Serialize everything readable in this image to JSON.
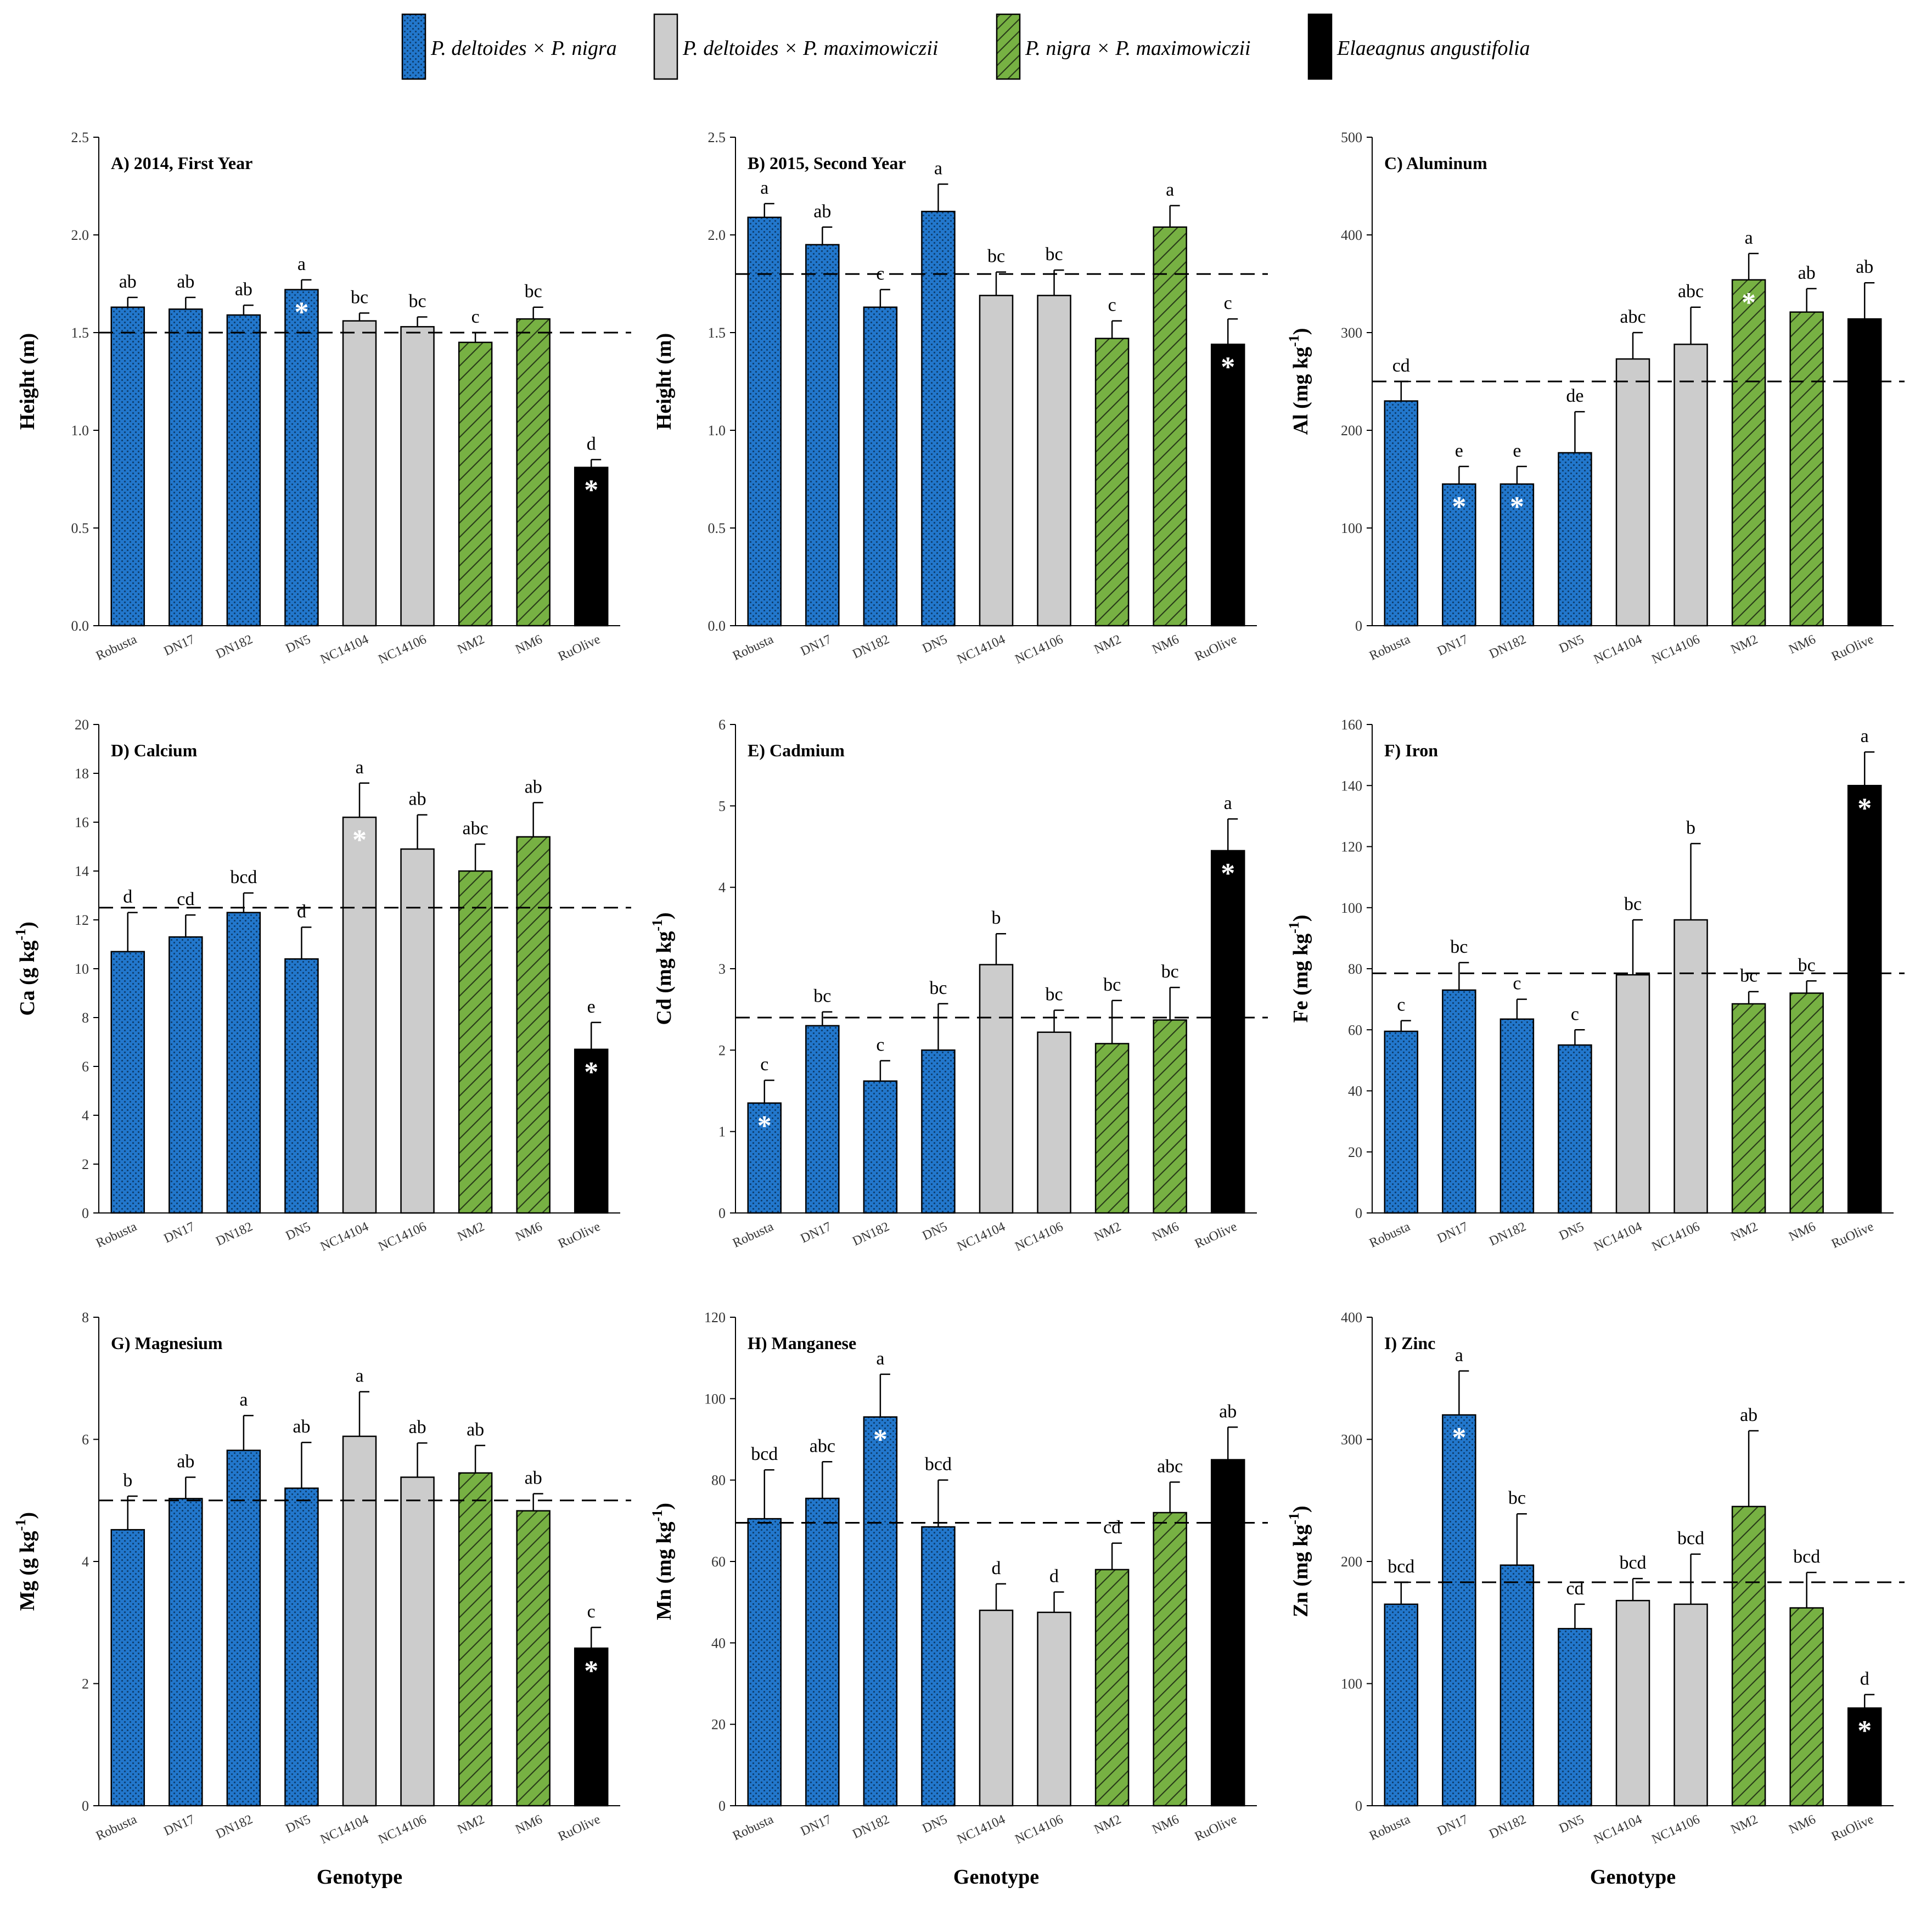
{
  "legend": [
    {
      "name": "legend-deltoides-nigra",
      "label": "P. deltoides × P. nigra",
      "color": "#2277cc",
      "pattern": "dots"
    },
    {
      "name": "legend-deltoides-maximowiczii",
      "label": "P. deltoides × P. maximowiczii",
      "color": "#cccccc",
      "pattern": "solid"
    },
    {
      "name": "legend-nigra-maximowiczii",
      "label": "P. nigra × P. maximowiczii",
      "color": "#77b143",
      "pattern": "hatch"
    },
    {
      "name": "legend-elaeagnus",
      "label": "Elaeagnus angustifolia",
      "color": "#000000",
      "pattern": "solid"
    }
  ],
  "genotypes": [
    "Robusta",
    "DN17",
    "DN182",
    "DN5",
    "NC14104",
    "NC14106",
    "NM2",
    "NM6",
    "RuOlive"
  ],
  "groups": [
    "dn",
    "dn",
    "dn",
    "dn",
    "nc",
    "nc",
    "nm",
    "nm",
    "ea"
  ],
  "colors": {
    "dn": "#2277cc",
    "nc": "#cccccc",
    "nm": "#77b143",
    "ea": "#000000",
    "dots": "#0e3e6e",
    "hatch": "#2a3d1a"
  },
  "xlabel": "Genotype",
  "chart_data": [
    {
      "id": "A",
      "type": "bar",
      "title": "A) 2014, First Year",
      "ylabel": "Height (m)",
      "ylim": [
        0,
        2.5
      ],
      "yticks": [
        "0.0",
        "0.5",
        "1.0",
        "1.5",
        "2.0",
        "2.5"
      ],
      "reference_line": 1.5,
      "values": [
        1.63,
        1.62,
        1.59,
        1.72,
        1.56,
        1.53,
        1.45,
        1.57,
        0.81
      ],
      "errors": [
        0.05,
        0.06,
        0.05,
        0.05,
        0.04,
        0.05,
        0.05,
        0.06,
        0.04
      ],
      "letters": [
        "ab",
        "ab",
        "ab",
        "a",
        "bc",
        "bc",
        "c",
        "bc",
        "d"
      ],
      "significant": [
        false,
        false,
        false,
        true,
        false,
        false,
        false,
        false,
        true
      ]
    },
    {
      "id": "B",
      "type": "bar",
      "title": "B) 2015, Second Year",
      "ylabel": "Height (m)",
      "ylim": [
        0,
        2.5
      ],
      "yticks": [
        "0.0",
        "0.5",
        "1.0",
        "1.5",
        "2.0",
        "2.5"
      ],
      "reference_line": 1.8,
      "values": [
        2.09,
        1.95,
        1.63,
        2.12,
        1.69,
        1.69,
        1.47,
        2.04,
        1.44
      ],
      "errors": [
        0.07,
        0.09,
        0.09,
        0.14,
        0.12,
        0.13,
        0.09,
        0.11,
        0.13
      ],
      "letters": [
        "a",
        "ab",
        "c",
        "a",
        "bc",
        "bc",
        "c",
        "a",
        "c"
      ],
      "significant": [
        false,
        false,
        false,
        false,
        false,
        false,
        false,
        false,
        true
      ]
    },
    {
      "id": "C",
      "type": "bar",
      "title": "C) Aluminum",
      "ylabel": "Al (mg kg⁻¹)",
      "ylim": [
        0,
        500
      ],
      "yticks": [
        "0",
        "100",
        "200",
        "300",
        "400",
        "500"
      ],
      "reference_line": 250,
      "values": [
        230,
        145,
        145,
        177,
        273,
        288,
        354,
        321,
        314
      ],
      "errors": [
        20,
        18,
        18,
        42,
        27,
        38,
        27,
        24,
        37
      ],
      "letters": [
        "cd",
        "e",
        "e",
        "de",
        "abc",
        "abc",
        "a",
        "ab",
        "ab"
      ],
      "significant": [
        false,
        true,
        true,
        false,
        false,
        false,
        true,
        false,
        false
      ]
    },
    {
      "id": "D",
      "type": "bar",
      "title": "D) Calcium",
      "ylabel": "Ca (g kg⁻¹)",
      "ylim": [
        0,
        20
      ],
      "yticks": [
        "0",
        "2",
        "4",
        "6",
        "8",
        "10",
        "12",
        "14",
        "16",
        "18",
        "20"
      ],
      "reference_line": 12.5,
      "values": [
        10.7,
        11.3,
        12.3,
        10.4,
        16.2,
        14.9,
        14.0,
        15.4,
        6.7
      ],
      "errors": [
        1.6,
        0.9,
        0.8,
        1.3,
        1.4,
        1.4,
        1.1,
        1.4,
        1.1
      ],
      "letters": [
        "d",
        "cd",
        "bcd",
        "d",
        "a",
        "ab",
        "abc",
        "ab",
        "e"
      ],
      "significant": [
        false,
        false,
        false,
        false,
        true,
        false,
        false,
        false,
        true
      ]
    },
    {
      "id": "E",
      "type": "bar",
      "title": "E) Cadmium",
      "ylabel": "Cd (mg kg⁻¹)",
      "ylim": [
        0,
        6
      ],
      "yticks": [
        "0",
        "1",
        "2",
        "3",
        "4",
        "5",
        "6"
      ],
      "reference_line": 2.4,
      "values": [
        1.35,
        2.3,
        1.62,
        2.0,
        3.05,
        2.22,
        2.08,
        2.37,
        4.45
      ],
      "errors": [
        0.28,
        0.17,
        0.25,
        0.57,
        0.38,
        0.27,
        0.53,
        0.4,
        0.39
      ],
      "letters": [
        "c",
        "bc",
        "c",
        "bc",
        "b",
        "bc",
        "bc",
        "bc",
        "a"
      ],
      "significant": [
        true,
        false,
        false,
        false,
        false,
        false,
        false,
        false,
        true
      ]
    },
    {
      "id": "F",
      "type": "bar",
      "title": "F) Iron",
      "ylabel": "Fe (mg kg⁻¹)",
      "ylim": [
        0,
        160
      ],
      "yticks": [
        "0",
        "20",
        "40",
        "60",
        "80",
        "100",
        "120",
        "140",
        "160"
      ],
      "reference_line": 78.5,
      "values": [
        59.5,
        73,
        63.5,
        55,
        78,
        96,
        68.5,
        72,
        140
      ],
      "errors": [
        3.5,
        9,
        6.5,
        5,
        18,
        25,
        4,
        4,
        11
      ],
      "letters": [
        "c",
        "bc",
        "c",
        "c",
        "bc",
        "b",
        "bc",
        "bc",
        "a"
      ],
      "significant": [
        false,
        false,
        false,
        false,
        false,
        false,
        false,
        false,
        true
      ]
    },
    {
      "id": "G",
      "type": "bar",
      "title": "G) Magnesium",
      "ylabel": "Mg (g kg⁻¹)",
      "ylim": [
        0,
        8
      ],
      "yticks": [
        "0",
        "2",
        "4",
        "6",
        "8"
      ],
      "reference_line": 5.0,
      "values": [
        4.52,
        5.03,
        5.82,
        5.2,
        6.05,
        5.38,
        5.45,
        4.83,
        2.58
      ],
      "errors": [
        0.55,
        0.35,
        0.57,
        0.75,
        0.73,
        0.56,
        0.45,
        0.28,
        0.34
      ],
      "letters": [
        "b",
        "ab",
        "a",
        "ab",
        "a",
        "ab",
        "ab",
        "ab",
        "c"
      ],
      "significant": [
        false,
        false,
        false,
        false,
        false,
        false,
        false,
        false,
        true
      ]
    },
    {
      "id": "H",
      "type": "bar",
      "title": "H) Manganese",
      "ylabel": "Mn (mg kg⁻¹)",
      "ylim": [
        0,
        120
      ],
      "yticks": [
        "0",
        "20",
        "40",
        "60",
        "80",
        "100",
        "120"
      ],
      "reference_line": 69.5,
      "values": [
        70.5,
        75.5,
        95.5,
        68.5,
        48,
        47.5,
        58,
        72,
        85
      ],
      "errors": [
        12,
        9,
        10.5,
        11.5,
        6.5,
        5,
        6.5,
        7.5,
        8
      ],
      "letters": [
        "bcd",
        "abc",
        "a",
        "bcd",
        "d",
        "d",
        "cd",
        "abc",
        "ab"
      ],
      "significant": [
        false,
        false,
        true,
        false,
        false,
        false,
        false,
        false,
        false
      ]
    },
    {
      "id": "I",
      "type": "bar",
      "title": "I) Zinc",
      "ylabel": "Zn (mg kg⁻¹)",
      "ylim": [
        0,
        400
      ],
      "yticks": [
        "0",
        "100",
        "200",
        "300",
        "400"
      ],
      "reference_line": 183,
      "values": [
        165,
        320,
        197,
        145,
        168,
        165,
        245,
        162,
        80
      ],
      "errors": [
        18,
        36,
        42,
        20,
        18,
        41,
        62,
        29,
        11
      ],
      "letters": [
        "bcd",
        "a",
        "bc",
        "cd",
        "bcd",
        "bcd",
        "ab",
        "bcd",
        "d"
      ],
      "significant": [
        false,
        true,
        false,
        false,
        false,
        false,
        false,
        false,
        true
      ]
    }
  ]
}
